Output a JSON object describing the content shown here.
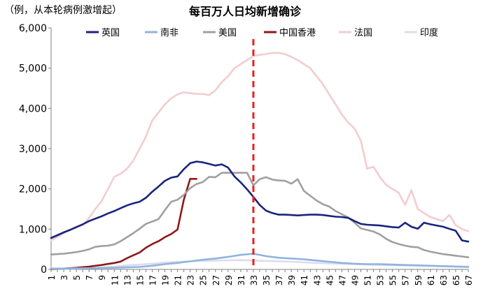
{
  "chart_data": {
    "type": "line",
    "title": "每百万人日均新增确诊",
    "ylabel": "（例，从本轮病例激增起）",
    "xlabel": "",
    "ylim": [
      0,
      6000
    ],
    "yticks": [
      0,
      1000,
      2000,
      3000,
      4000,
      5000,
      6000
    ],
    "ytick_labels": [
      "0",
      "1,000",
      "2,000",
      "3,000",
      "4,000",
      "5,000",
      "6,000"
    ],
    "xlim": [
      1,
      67
    ],
    "xticks": [
      1,
      3,
      5,
      7,
      9,
      11,
      13,
      15,
      17,
      19,
      21,
      23,
      25,
      27,
      29,
      31,
      33,
      35,
      37,
      39,
      41,
      43,
      45,
      47,
      49,
      51,
      53,
      55,
      57,
      59,
      61,
      63,
      65,
      67
    ],
    "grid": false,
    "legend_position": "top",
    "marker_line": {
      "x": 33,
      "style": "dashed",
      "color": "#e8211c"
    },
    "series": [
      {
        "name": "英国",
        "color": "#1a237e",
        "width": 2.6,
        "x": [
          1,
          2,
          3,
          4,
          5,
          6,
          7,
          8,
          9,
          10,
          11,
          12,
          13,
          14,
          15,
          16,
          17,
          18,
          19,
          20,
          21,
          22,
          23,
          24,
          25,
          26,
          27,
          28,
          29,
          30,
          31,
          32,
          33,
          34,
          35,
          36,
          37,
          38,
          39,
          40,
          41,
          42,
          43,
          44,
          45,
          46,
          47,
          48,
          49,
          50,
          51,
          52,
          53,
          54,
          55,
          56,
          57,
          58,
          59,
          60,
          61,
          62,
          63,
          64,
          65,
          66,
          67
        ],
        "y": [
          780,
          850,
          920,
          980,
          1050,
          1120,
          1200,
          1260,
          1320,
          1390,
          1450,
          1520,
          1590,
          1640,
          1680,
          1780,
          1930,
          2060,
          2200,
          2280,
          2310,
          2490,
          2640,
          2680,
          2660,
          2620,
          2580,
          2610,
          2530,
          2310,
          2160,
          1990,
          1800,
          1600,
          1460,
          1400,
          1360,
          1360,
          1350,
          1340,
          1350,
          1360,
          1360,
          1350,
          1330,
          1310,
          1300,
          1280,
          1200,
          1130,
          1110,
          1100,
          1090,
          1070,
          1050,
          1040,
          1160,
          1060,
          1010,
          1160,
          1120,
          1090,
          1060,
          1010,
          960,
          720,
          690
        ]
      },
      {
        "name": "南非",
        "color": "#8fb4de",
        "width": 2.6,
        "x": [
          1,
          3,
          5,
          7,
          9,
          11,
          13,
          15,
          17,
          19,
          21,
          23,
          25,
          27,
          29,
          31,
          33,
          35,
          37,
          39,
          41,
          43,
          45,
          47,
          49,
          51,
          53,
          55,
          57,
          59,
          61,
          63,
          65,
          67
        ],
        "y": [
          20,
          20,
          25,
          30,
          35,
          40,
          50,
          60,
          90,
          130,
          160,
          200,
          240,
          270,
          310,
          360,
          390,
          330,
          290,
          270,
          250,
          220,
          190,
          160,
          140,
          130,
          130,
          120,
          110,
          100,
          90,
          80,
          70,
          60
        ]
      },
      {
        "name": "美国",
        "color": "#a0a0a0",
        "width": 2.6,
        "x": [
          1,
          2,
          3,
          4,
          5,
          6,
          7,
          8,
          9,
          10,
          11,
          12,
          13,
          14,
          15,
          16,
          17,
          18,
          19,
          20,
          21,
          22,
          23,
          24,
          25,
          26,
          27,
          28,
          29,
          30,
          31,
          32,
          33,
          34,
          35,
          36,
          37,
          38,
          39,
          40,
          41,
          42,
          43,
          44,
          45,
          46,
          47,
          48,
          49,
          50,
          51,
          52,
          53,
          54,
          55,
          56,
          57,
          58,
          59,
          60,
          61,
          62,
          63,
          64,
          65,
          66,
          67
        ],
        "y": [
          370,
          380,
          390,
          410,
          430,
          460,
          500,
          560,
          580,
          590,
          620,
          700,
          800,
          900,
          1010,
          1130,
          1190,
          1250,
          1470,
          1680,
          1730,
          1850,
          2020,
          2120,
          2170,
          2300,
          2290,
          2400,
          2400,
          2400,
          2400,
          2400,
          2090,
          2240,
          2290,
          2230,
          2210,
          2200,
          2130,
          2240,
          1950,
          1830,
          1710,
          1620,
          1560,
          1450,
          1370,
          1290,
          1160,
          1020,
          980,
          940,
          870,
          760,
          680,
          630,
          590,
          560,
          550,
          480,
          440,
          410,
          380,
          360,
          340,
          320,
          300
        ]
      },
      {
        "name": "中国香港",
        "color": "#8b1a1a",
        "width": 2.6,
        "x": [
          1,
          2,
          3,
          4,
          5,
          6,
          7,
          8,
          9,
          10,
          11,
          12,
          13,
          14,
          15,
          16,
          17,
          18,
          19,
          20,
          21,
          22,
          23,
          24
        ],
        "y": [
          10,
          15,
          20,
          30,
          40,
          55,
          70,
          90,
          110,
          135,
          160,
          195,
          280,
          350,
          420,
          540,
          630,
          700,
          800,
          880,
          990,
          1730,
          2250,
          2250
        ]
      },
      {
        "name": "法国",
        "color": "#f2cdd0",
        "width": 2.6,
        "x": [
          1,
          2,
          3,
          4,
          5,
          6,
          7,
          8,
          9,
          10,
          11,
          12,
          13,
          14,
          15,
          16,
          17,
          18,
          19,
          20,
          21,
          22,
          23,
          24,
          25,
          26,
          27,
          28,
          29,
          30,
          31,
          32,
          33,
          34,
          35,
          36,
          37,
          38,
          39,
          40,
          41,
          42,
          43,
          44,
          45,
          46,
          47,
          48,
          49,
          50,
          51,
          52,
          53,
          54,
          55,
          56,
          57,
          58,
          59,
          60,
          61,
          62,
          63,
          64,
          65,
          66,
          67
        ],
        "y": [
          720,
          800,
          900,
          1000,
          1060,
          1100,
          1280,
          1500,
          1700,
          2000,
          2300,
          2380,
          2500,
          2700,
          3000,
          3300,
          3700,
          3900,
          4100,
          4250,
          4350,
          4400,
          4380,
          4360,
          4360,
          4330,
          4450,
          4650,
          4800,
          5000,
          5100,
          5200,
          5300,
          5330,
          5350,
          5380,
          5380,
          5350,
          5280,
          5200,
          5100,
          5000,
          4800,
          4600,
          4350,
          4100,
          3850,
          3650,
          3500,
          3200,
          2500,
          2550,
          2300,
          2100,
          2000,
          1900,
          1600,
          1970,
          1500,
          1400,
          1300,
          1250,
          1200,
          1350,
          1100,
          1000,
          950
        ]
      },
      {
        "name": "印度",
        "color": "#dcdcf0",
        "width": 2.6,
        "x": [
          1,
          3,
          5,
          7,
          9,
          11,
          13,
          15,
          17,
          19,
          21,
          23,
          25,
          27,
          29,
          31,
          33,
          35,
          37,
          39,
          41,
          43,
          45,
          47,
          49,
          51,
          53,
          55,
          57,
          59,
          61,
          63,
          65,
          67
        ],
        "y": [
          10,
          15,
          20,
          30,
          50,
          70,
          100,
          120,
          140,
          170,
          190,
          200,
          210,
          220,
          225,
          230,
          220,
          210,
          200,
          190,
          175,
          160,
          150,
          140,
          130,
          120,
          110,
          100,
          95,
          90,
          85,
          80,
          75,
          70
        ]
      }
    ]
  }
}
